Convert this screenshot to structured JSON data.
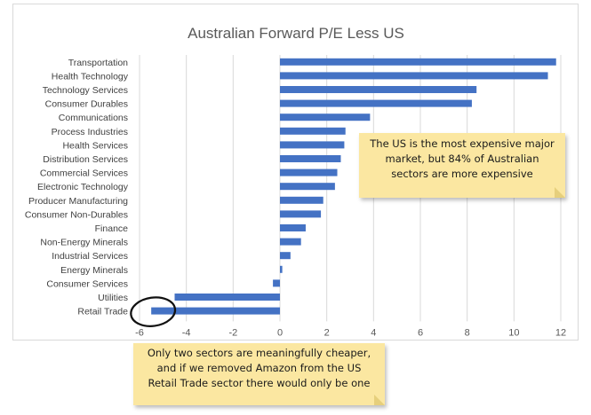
{
  "chart_data": {
    "type": "bar",
    "orientation": "horizontal",
    "title": "Australian Forward P/E Less US",
    "categories": [
      "Transportation",
      "Health Technology",
      "Technology Services",
      "Consumer Durables",
      "Communications",
      "Process Industries",
      "Health Services",
      "Distribution Services",
      "Commercial Services",
      "Electronic Technology",
      "Producer Manufacturing",
      "Consumer Non-Durables",
      "Finance",
      "Non-Energy Minerals",
      "Industrial Services",
      "Energy Minerals",
      "Consumer Services",
      "Utilities",
      "Retail Trade"
    ],
    "values": [
      11.8,
      11.45,
      8.4,
      8.2,
      3.85,
      2.8,
      2.75,
      2.6,
      2.45,
      2.35,
      1.85,
      1.75,
      1.1,
      0.9,
      0.45,
      0.1,
      -0.3,
      -4.5,
      -5.5
    ],
    "xlim": [
      -6,
      12
    ],
    "xticks": [
      -6,
      -4,
      -2,
      0,
      2,
      4,
      6,
      8,
      10,
      12
    ],
    "grid": "vertical",
    "bar_color": "#4472c4",
    "highlight": "Retail Trade"
  },
  "notes": {
    "us_note": [
      "The US is the most expensive major",
      "market, but 84% of Australian",
      "sectors are more expensive"
    ],
    "cheap_note": [
      "Only two sectors are meaningfully cheaper,",
      "and if we removed Amazon from the US",
      "Retail Trade sector there would only be one"
    ]
  }
}
